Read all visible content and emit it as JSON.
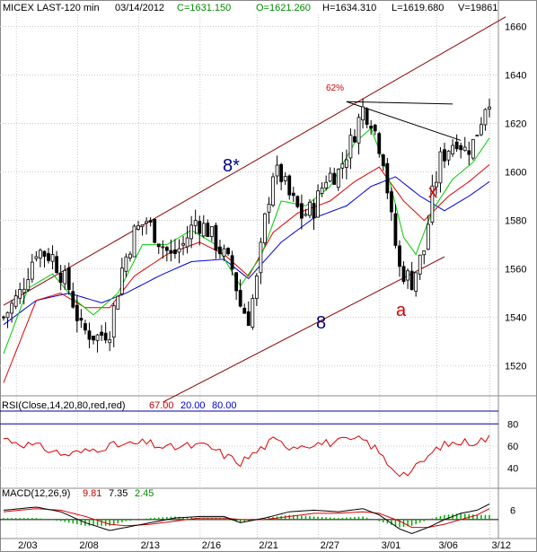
{
  "header": {
    "symbol": "MICEX LAST-120 min",
    "date": "03/14/2012",
    "close": "C=1631.150",
    "open": "O=1621.260",
    "high": "H=1634.310",
    "low": "L=1619.680",
    "volume": "V=19861"
  },
  "annotations": {
    "fib": "62%",
    "wave_8_star": "8*",
    "wave_8": "8",
    "wave_a": "a",
    "wave_x": "x"
  },
  "rsi_panel": {
    "label": "RSI(Close,14,20,80,red,red)",
    "v1": "67.00",
    "v2": "20.00",
    "v3": "80.00"
  },
  "macd_panel": {
    "label": "MACD(12,26,9)",
    "v1": "9.81",
    "v2": "7.35",
    "v3": "2.45"
  },
  "colors": {
    "price_up": "#000000",
    "ma_fast": "#00cc00",
    "ma_mid": "#dd0000",
    "ma_slow": "#0000dd",
    "channel": "#8b0000",
    "label_blue": "#000080",
    "label_red": "#dd0000",
    "grid": "#c8c8c8"
  },
  "chart_data": [
    {
      "type": "candlestick",
      "title": "MICEX LAST-120 min",
      "x_ticks": [
        "2/03",
        "2/08",
        "2/13",
        "2/16",
        "2/21",
        "2/27",
        "3/01",
        "3/06",
        "3/12"
      ],
      "y_ticks": [
        1520,
        1540,
        1560,
        1580,
        1600,
        1620,
        1640,
        1660
      ],
      "ylim": [
        1508,
        1665
      ],
      "price_path": [
        [
          0,
          1540
        ],
        [
          4,
          1550
        ],
        [
          8,
          1568
        ],
        [
          12,
          1565
        ],
        [
          16,
          1552
        ],
        [
          19,
          1535
        ],
        [
          23,
          1532
        ],
        [
          26,
          1535
        ],
        [
          29,
          1560
        ],
        [
          32,
          1575
        ],
        [
          35,
          1580
        ],
        [
          38,
          1572
        ],
        [
          41,
          1565
        ],
        [
          44,
          1570
        ],
        [
          47,
          1580
        ],
        [
          50,
          1576
        ],
        [
          53,
          1568
        ],
        [
          56,
          1560
        ],
        [
          58,
          1545
        ],
        [
          60,
          1540
        ],
        [
          62,
          1555
        ],
        [
          64,
          1580
        ],
        [
          66,
          1600
        ],
        [
          68,
          1598
        ],
        [
          70,
          1590
        ],
        [
          73,
          1582
        ],
        [
          76,
          1585
        ],
        [
          79,
          1598
        ],
        [
          82,
          1600
        ],
        [
          85,
          1612
        ],
        [
          88,
          1626
        ],
        [
          90,
          1622
        ],
        [
          93,
          1606
        ],
        [
          95,
          1580
        ],
        [
          97,
          1560
        ],
        [
          100,
          1555
        ],
        [
          103,
          1568
        ],
        [
          105,
          1590
        ],
        [
          107,
          1605
        ],
        [
          109,
          1610
        ],
        [
          111,
          1614
        ],
        [
          113,
          1609
        ],
        [
          115,
          1612
        ],
        [
          117,
          1622
        ],
        [
          118,
          1628
        ],
        [
          119,
          1631
        ]
      ],
      "ma_fast_path": [
        [
          0,
          1525
        ],
        [
          6,
          1552
        ],
        [
          12,
          1558
        ],
        [
          17,
          1548
        ],
        [
          22,
          1541
        ],
        [
          28,
          1550
        ],
        [
          34,
          1570
        ],
        [
          40,
          1570
        ],
        [
          46,
          1576
        ],
        [
          52,
          1570
        ],
        [
          58,
          1553
        ],
        [
          63,
          1565
        ],
        [
          68,
          1588
        ],
        [
          74,
          1586
        ],
        [
          80,
          1594
        ],
        [
          86,
          1612
        ],
        [
          90,
          1618
        ],
        [
          94,
          1600
        ],
        [
          98,
          1573
        ],
        [
          101,
          1566
        ],
        [
          105,
          1584
        ],
        [
          110,
          1597
        ],
        [
          115,
          1604
        ],
        [
          119,
          1614
        ]
      ],
      "ma_mid_path": [
        [
          0,
          1513
        ],
        [
          8,
          1547
        ],
        [
          14,
          1550
        ],
        [
          20,
          1544
        ],
        [
          26,
          1544
        ],
        [
          32,
          1557
        ],
        [
          40,
          1566
        ],
        [
          48,
          1571
        ],
        [
          54,
          1566
        ],
        [
          60,
          1557
        ],
        [
          66,
          1575
        ],
        [
          72,
          1583
        ],
        [
          80,
          1588
        ],
        [
          86,
          1596
        ],
        [
          92,
          1602
        ],
        [
          98,
          1588
        ],
        [
          103,
          1580
        ],
        [
          109,
          1590
        ],
        [
          114,
          1596
        ],
        [
          119,
          1603
        ]
      ],
      "ma_slow_path": [
        [
          0,
          1537
        ],
        [
          8,
          1547
        ],
        [
          16,
          1550
        ],
        [
          24,
          1546
        ],
        [
          30,
          1550
        ],
        [
          38,
          1557
        ],
        [
          46,
          1563
        ],
        [
          54,
          1564
        ],
        [
          60,
          1556
        ],
        [
          68,
          1571
        ],
        [
          76,
          1581
        ],
        [
          84,
          1586
        ],
        [
          90,
          1594
        ],
        [
          96,
          1598
        ],
        [
          102,
          1590
        ],
        [
          108,
          1584
        ],
        [
          114,
          1590
        ],
        [
          119,
          1596
        ]
      ],
      "channel_upper": [
        [
          0,
          1545
        ],
        [
          123,
          1664
        ]
      ],
      "channel_lower": [
        [
          39,
          1505
        ],
        [
          108,
          1565
        ]
      ],
      "triangle_lines": [
        [
          [
            84,
            1629
          ],
          [
            110,
            1628
          ]
        ],
        [
          [
            84,
            1629
          ],
          [
            112,
            1613
          ]
        ]
      ]
    },
    {
      "type": "line",
      "title": "RSI(Close,14,20,80,red,red)",
      "y_ticks": [
        40,
        60,
        80
      ],
      "ylim": [
        25,
        90
      ],
      "reference_lines": [
        20,
        80
      ],
      "series": [
        {
          "name": "RSI",
          "path": [
            [
              0,
              67
            ],
            [
              5,
              62
            ],
            [
              10,
              58
            ],
            [
              15,
              52
            ],
            [
              20,
              55
            ],
            [
              25,
              60
            ],
            [
              30,
              61
            ],
            [
              35,
              63
            ],
            [
              40,
              58
            ],
            [
              45,
              60
            ],
            [
              50,
              60
            ],
            [
              55,
              50
            ],
            [
              58,
              45
            ],
            [
              62,
              55
            ],
            [
              66,
              65
            ],
            [
              70,
              60
            ],
            [
              75,
              62
            ],
            [
              80,
              63
            ],
            [
              85,
              65
            ],
            [
              88,
              66
            ],
            [
              91,
              58
            ],
            [
              94,
              45
            ],
            [
              96,
              38
            ],
            [
              98,
              35
            ],
            [
              100,
              37
            ],
            [
              103,
              47
            ],
            [
              107,
              60
            ],
            [
              111,
              63
            ],
            [
              115,
              64
            ],
            [
              119,
              67
            ]
          ]
        }
      ]
    },
    {
      "type": "line",
      "title": "MACD(12,26,9)",
      "y_ticks": [
        6
      ],
      "ylim": [
        -11,
        12
      ],
      "series": [
        {
          "name": "MACD",
          "path": [
            [
              0,
              6
            ],
            [
              8,
              8
            ],
            [
              14,
              5
            ],
            [
              20,
              -2
            ],
            [
              26,
              -7
            ],
            [
              30,
              -5
            ],
            [
              36,
              -2
            ],
            [
              42,
              1
            ],
            [
              48,
              2
            ],
            [
              54,
              2
            ],
            [
              58,
              -2
            ],
            [
              64,
              1
            ],
            [
              70,
              5
            ],
            [
              76,
              6
            ],
            [
              82,
              5
            ],
            [
              88,
              7
            ],
            [
              92,
              3
            ],
            [
              97,
              -6
            ],
            [
              100,
              -9
            ],
            [
              104,
              -5
            ],
            [
              108,
              0
            ],
            [
              112,
              4
            ],
            [
              116,
              6
            ],
            [
              119,
              10
            ]
          ]
        },
        {
          "name": "Signal",
          "path": [
            [
              0,
              5
            ],
            [
              8,
              7
            ],
            [
              14,
              6
            ],
            [
              20,
              2
            ],
            [
              26,
              -3
            ],
            [
              30,
              -4
            ],
            [
              36,
              -3
            ],
            [
              42,
              -1
            ],
            [
              48,
              1
            ],
            [
              54,
              1
            ],
            [
              58,
              0
            ],
            [
              64,
              0
            ],
            [
              70,
              2
            ],
            [
              76,
              4
            ],
            [
              82,
              4
            ],
            [
              88,
              5
            ],
            [
              92,
              4
            ],
            [
              97,
              -1
            ],
            [
              100,
              -5
            ],
            [
              104,
              -5
            ],
            [
              108,
              -3
            ],
            [
              112,
              0
            ],
            [
              116,
              3
            ],
            [
              119,
              7
            ]
          ]
        }
      ]
    }
  ]
}
